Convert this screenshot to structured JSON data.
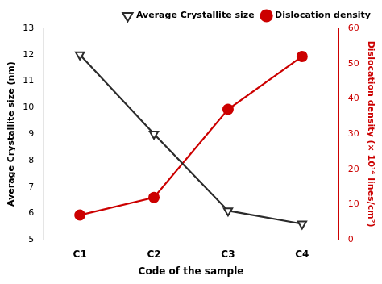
{
  "chart_data": {
    "type": "line",
    "xlabel": "Code of the sample",
    "ylabel": "Average Crystallite size (nm)",
    "y2label": "Dislocation density (× 10¹⁴ lines/cm²)",
    "categories": [
      "C1",
      "C2",
      "C3",
      "C4"
    ],
    "series": [
      {
        "name": "Average Crystallite size",
        "color": "#2b2b2b",
        "values": [
          12.0,
          9.0,
          6.1,
          5.6
        ],
        "marker": "triangle-down",
        "axis": "y"
      },
      {
        "name": "Dislocation density",
        "color": "#cc0000",
        "values": [
          7.0,
          12.0,
          37.0,
          52.0
        ],
        "marker": "circle",
        "axis": "y2"
      }
    ],
    "ylim": [
      5,
      13
    ],
    "yticks": [
      5,
      6,
      7,
      8,
      9,
      10,
      11,
      12,
      13
    ],
    "y2lim": [
      0,
      60
    ],
    "y2ticks": [
      0,
      10,
      20,
      30,
      40,
      50,
      60
    ],
    "grid": false,
    "legend": "upper right"
  }
}
